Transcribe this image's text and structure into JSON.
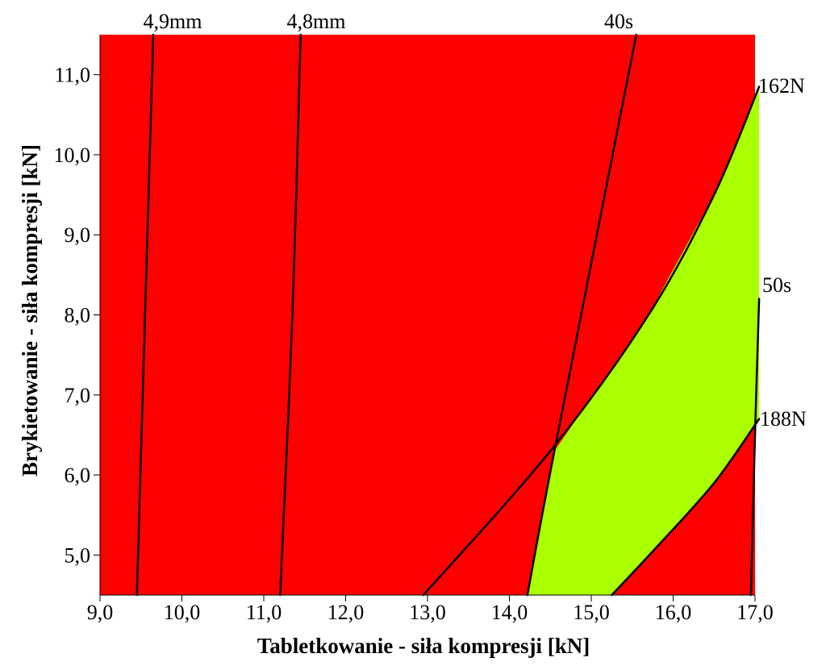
{
  "chart_data": {
    "type": "contour",
    "title": "",
    "xlabel": "Tabletkowanie - siła kompresji [kN]",
    "ylabel": "Brykietowanie - siła kompresji [kN]",
    "xlim": [
      9.0,
      17.0
    ],
    "ylim": [
      4.5,
      11.5
    ],
    "x_ticks": [
      9.0,
      10.0,
      11.0,
      12.0,
      13.0,
      14.0,
      15.0,
      16.0,
      17.0
    ],
    "x_tick_labels": [
      "9,0",
      "10,0",
      "11,0",
      "12,0",
      "13,0",
      "14,0",
      "15,0",
      "16,0",
      "17,0"
    ],
    "y_ticks": [
      5.0,
      6.0,
      7.0,
      8.0,
      9.0,
      10.0,
      11.0
    ],
    "y_tick_labels": [
      "5,0",
      "6,0",
      "7,0",
      "8,0",
      "9,0",
      "10,0",
      "11,0"
    ],
    "grid": false,
    "colors": {
      "outside_region": "#ff0000",
      "design_space": "#aaff00",
      "contour_line": "#000000"
    },
    "contours": [
      {
        "label": "4,9mm",
        "points": [
          [
            9.45,
            4.5
          ],
          [
            9.55,
            8.0
          ],
          [
            9.65,
            11.5
          ]
        ]
      },
      {
        "label": "4,8mm",
        "points": [
          [
            11.2,
            4.5
          ],
          [
            11.35,
            8.0
          ],
          [
            11.45,
            11.5
          ]
        ]
      },
      {
        "label": "40s",
        "points": [
          [
            14.22,
            4.5
          ],
          [
            14.55,
            6.3
          ],
          [
            15.55,
            11.5
          ]
        ]
      },
      {
        "label": "162N",
        "points": [
          [
            12.95,
            4.5
          ],
          [
            14.5,
            6.3
          ],
          [
            15.7,
            8.0
          ],
          [
            16.5,
            9.5
          ],
          [
            17.05,
            10.85
          ]
        ]
      },
      {
        "label": "50s",
        "points": [
          [
            16.95,
            4.5
          ],
          [
            17.0,
            6.5
          ],
          [
            17.05,
            8.2
          ]
        ]
      },
      {
        "label": "188N",
        "points": [
          [
            15.25,
            4.5
          ],
          [
            15.8,
            5.1
          ],
          [
            16.5,
            5.9
          ],
          [
            17.05,
            6.7
          ]
        ]
      }
    ],
    "design_space": {
      "boundary": [
        [
          14.22,
          4.5
        ],
        [
          14.55,
          6.3
        ],
        [
          15.7,
          8.0
        ],
        [
          16.5,
          9.5
        ],
        [
          17.05,
          10.85
        ],
        [
          17.05,
          6.7
        ],
        [
          16.5,
          5.9
        ],
        [
          15.8,
          5.1
        ],
        [
          15.25,
          4.5
        ]
      ]
    }
  }
}
